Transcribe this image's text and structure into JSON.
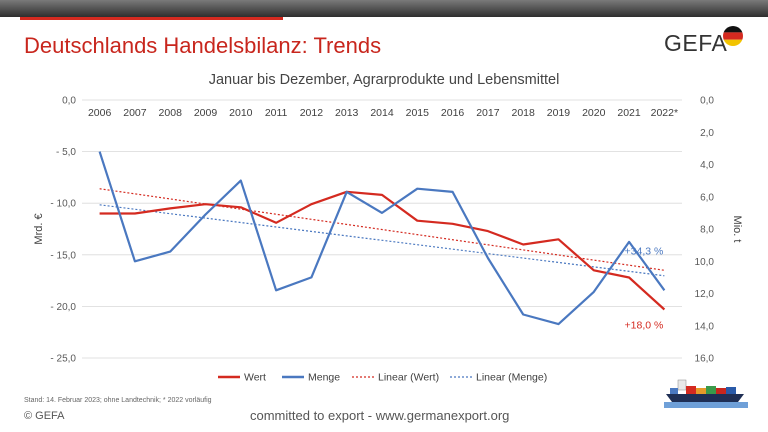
{
  "header": {
    "title": "Deutschlands Handelsbilanz: Trends",
    "brand": "GEFA"
  },
  "footer": {
    "note": "Stand: 14. Februar 2023; ohne Landtechnik; * 2022 vorläufig",
    "copyright": "© GEFA",
    "tagline": "committed to export - www.germanexport.org"
  },
  "colors": {
    "wert": "#d42a20",
    "menge": "#4a78c0",
    "brand_red": "#c8261d"
  },
  "chart_data": {
    "type": "line",
    "title": "Januar bis Dezember, Agrarprodukte und Lebensmittel",
    "categories": [
      "2006",
      "2007",
      "2008",
      "2009",
      "2010",
      "2011",
      "2012",
      "2013",
      "2014",
      "2015",
      "2016",
      "2017",
      "2018",
      "2019",
      "2020",
      "2021",
      "2022*"
    ],
    "ylabel": "Mrd. €",
    "y2label": "Mio. t",
    "ylim": [
      -25,
      0
    ],
    "yticks": [
      "0,0",
      "- 5,0",
      "- 10,0",
      "- 15,0",
      "- 20,0",
      "- 25,0"
    ],
    "y2lim": [
      16,
      0
    ],
    "y2ticks": [
      "0,0",
      "2,0",
      "4,0",
      "6,0",
      "8,0",
      "10,0",
      "12,0",
      "14,0",
      "16,0"
    ],
    "series": [
      {
        "name": "Wert",
        "axis": "left",
        "values": [
          -11.0,
          -11.0,
          -10.5,
          -10.1,
          -10.4,
          -11.9,
          -10.1,
          -8.9,
          -9.2,
          -11.7,
          -12.0,
          -12.7,
          -14.0,
          -13.5,
          -16.5,
          -17.2,
          -20.3
        ],
        "color": "#d42a20"
      },
      {
        "name": "Menge",
        "axis": "right",
        "values": [
          3.2,
          10.0,
          9.4,
          7.1,
          5.0,
          11.8,
          11.0,
          5.7,
          7.0,
          5.5,
          5.7,
          9.8,
          13.3,
          13.9,
          11.9,
          8.8,
          11.8
        ],
        "color": "#4a78c0"
      }
    ],
    "trendlines": [
      {
        "name": "Linear (Wert)",
        "axis": "left",
        "start": -8.6,
        "end": -16.5,
        "color": "#d42a20"
      },
      {
        "name": "Linear (Menge)",
        "axis": "right",
        "start": 6.5,
        "end": 10.9,
        "color": "#4a78c0"
      }
    ],
    "annotations": [
      {
        "text": "+34,3 %",
        "series": "Menge",
        "color": "#4a78c0"
      },
      {
        "text": "+18,0 %",
        "series": "Wert",
        "color": "#d42a20"
      }
    ],
    "legend": [
      "Wert",
      "Menge",
      "Linear (Wert)",
      "Linear (Menge)"
    ],
    "legend_position": "bottom",
    "grid": true
  }
}
